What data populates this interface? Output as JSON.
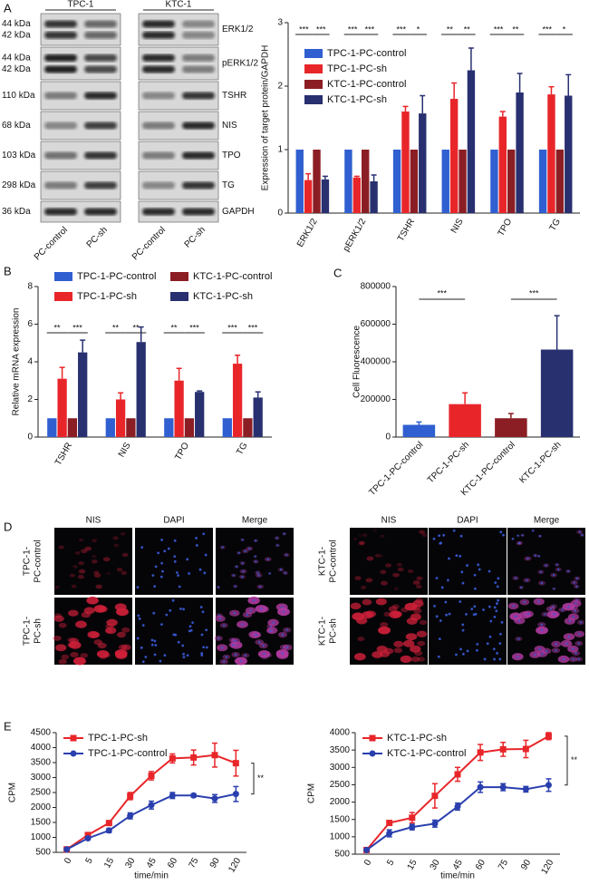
{
  "panels": [
    "A",
    "B",
    "C",
    "D",
    "E"
  ],
  "blot": {
    "groups": [
      {
        "name": "TPC-1",
        "lanes": [
          "PC-control",
          "PC-sh"
        ]
      },
      {
        "name": "KTC-1",
        "lanes": [
          "PC-control",
          "PC-sh"
        ]
      }
    ],
    "rows": [
      {
        "kda": [
          "44 kDa",
          "42 kDa"
        ],
        "name": "ERK1/2"
      },
      {
        "kda": [
          "44 kDa",
          "42 kDa"
        ],
        "name": "pERK1/2"
      },
      {
        "kda": [
          "110 kDa"
        ],
        "name": "TSHR"
      },
      {
        "kda": [
          "68 kDa"
        ],
        "name": "NIS"
      },
      {
        "kda": [
          "103 kDa"
        ],
        "name": "TPO"
      },
      {
        "kda": [
          "298 kDa"
        ],
        "name": "TG"
      },
      {
        "kda": [
          "36 kDa"
        ],
        "name": "GAPDH"
      }
    ]
  },
  "microscopy": [
    {
      "channels": [
        "NIS",
        "DAPI",
        "Merge"
      ],
      "rows": [
        [
          "TPC-1-",
          "PC-control"
        ],
        [
          "TPC-1-",
          "PC-sh"
        ]
      ]
    },
    {
      "channels": [
        "NIS",
        "DAPI",
        "Merge"
      ],
      "rows": [
        [
          "KTC-1-",
          "PC-control"
        ],
        [
          "KTC-1-",
          "PC-sh"
        ]
      ]
    }
  ],
  "chart_data": [
    {
      "type": "grouped_bar",
      "y_label": "Expression of target  protein/GAPDH",
      "categories": [
        "ERK1/2",
        "pERK1/2",
        "TSHR",
        "NIS",
        "TPO",
        "TG"
      ],
      "ylim": [
        0,
        3
      ],
      "yticks": [
        0,
        1,
        2,
        3
      ],
      "legend": "upper left",
      "series": [
        {
          "name": "TPC-1-PC-control",
          "color": "#2f5fd0",
          "values": [
            1,
            1,
            1,
            1,
            1,
            1
          ],
          "errors": [
            0,
            0,
            0,
            0,
            0,
            0
          ]
        },
        {
          "name": "TPC-1-PC-sh",
          "color": "#e8262a",
          "values": [
            0.52,
            0.56,
            1.6,
            1.8,
            1.52,
            1.87
          ],
          "errors": [
            0.1,
            0.02,
            0.08,
            0.25,
            0.08,
            0.12
          ]
        },
        {
          "name": "KTC-1-PC-control",
          "color": "#8b1e24",
          "values": [
            1,
            1,
            1,
            1,
            1,
            1
          ],
          "errors": [
            0,
            0,
            0,
            0,
            0,
            0
          ]
        },
        {
          "name": "KTC-1-PC-sh",
          "color": "#283070",
          "values": [
            0.53,
            0.5,
            1.57,
            2.25,
            1.9,
            1.85
          ],
          "errors": [
            0.05,
            0.1,
            0.28,
            0.35,
            0.3,
            0.33
          ]
        }
      ],
      "annotations": [
        [
          "***",
          "***"
        ],
        [
          "***",
          "***"
        ],
        [
          "***",
          "*"
        ],
        [
          "**",
          "**"
        ],
        [
          "***",
          "**"
        ],
        [
          "***",
          "*"
        ]
      ]
    },
    {
      "type": "grouped_bar",
      "y_label": "Relative mRNA expression",
      "categories": [
        "TSHR",
        "NIS",
        "TPO",
        "TG"
      ],
      "ylim": [
        0,
        8
      ],
      "yticks": [
        0,
        2,
        4,
        6,
        8
      ],
      "legend": "top",
      "series": [
        {
          "name": "TPC-1-PC-control",
          "color": "#2f5fd0",
          "values": [
            1,
            1,
            1,
            1
          ],
          "errors": [
            0,
            0,
            0,
            0
          ]
        },
        {
          "name": "TPC-1-PC-sh",
          "color": "#e8262a",
          "values": [
            3.1,
            2.0,
            3.0,
            3.9
          ],
          "errors": [
            0.6,
            0.35,
            0.65,
            0.45
          ]
        },
        {
          "name": "KTC-1-PC-control",
          "color": "#8b1e24",
          "values": [
            1,
            1,
            1,
            1
          ],
          "errors": [
            0,
            0,
            0,
            0
          ]
        },
        {
          "name": "KTC-1-PC-sh",
          "color": "#283070",
          "values": [
            4.5,
            5.05,
            2.4,
            2.1
          ],
          "errors": [
            0.65,
            0.8,
            0.05,
            0.3
          ]
        }
      ],
      "annotations": [
        [
          "**",
          "***"
        ],
        [
          "**",
          "**"
        ],
        [
          "**",
          "***"
        ],
        [
          "***",
          "***"
        ]
      ]
    },
    {
      "type": "bar",
      "y_label": "Cell Fluorescence",
      "categories": [
        "TPC-1-PC-control",
        "TPC-1-PC-sh",
        "KTC-1-PC-control",
        "KTC-1-PC-sh"
      ],
      "values": [
        65000,
        175000,
        100000,
        465000
      ],
      "errors": [
        15000,
        60000,
        25000,
        180000
      ],
      "colors": [
        "#2f5fd0",
        "#e8262a",
        "#8b1e24",
        "#283070"
      ],
      "ylim": [
        0,
        800000
      ],
      "yticks": [
        0,
        200000,
        400000,
        600000,
        800000
      ],
      "annotations": [
        "***",
        "***"
      ]
    },
    {
      "type": "line",
      "x_label": "time/min",
      "y_label": "CPM",
      "categories": [
        "0",
        "5",
        "15",
        "30",
        "45",
        "60",
        "75",
        "90",
        "120"
      ],
      "ylim": [
        500,
        4500
      ],
      "yticks": [
        500,
        1000,
        1500,
        2000,
        2500,
        3000,
        3500,
        4000,
        4500
      ],
      "legend": "upper left",
      "series": [
        {
          "name": "TPC-1-PC-sh",
          "color": "#e8262a",
          "marker": "square",
          "values": [
            600,
            1080,
            1480,
            2380,
            3060,
            3640,
            3670,
            3750,
            3480
          ],
          "errors": [
            30,
            50,
            60,
            120,
            140,
            150,
            250,
            400,
            430
          ]
        },
        {
          "name": "TPC-1-PC-control",
          "color": "#2a3fae",
          "marker": "circle",
          "values": [
            600,
            970,
            1230,
            1720,
            2080,
            2400,
            2400,
            2300,
            2450
          ],
          "errors": [
            30,
            50,
            70,
            100,
            130,
            100,
            60,
            130,
            250
          ]
        }
      ],
      "annotation": "**"
    },
    {
      "type": "line",
      "x_label": "time/min",
      "y_label": "CPM",
      "categories": [
        "0",
        "5",
        "15",
        "30",
        "45",
        "60",
        "75",
        "90",
        "120"
      ],
      "ylim": [
        500,
        4000
      ],
      "yticks": [
        500,
        1000,
        1500,
        2000,
        2500,
        3000,
        3500,
        4000
      ],
      "legend": "upper left",
      "series": [
        {
          "name": "KTC-1-PC-sh",
          "color": "#e8262a",
          "marker": "square",
          "values": [
            620,
            1400,
            1550,
            2180,
            2800,
            3430,
            3520,
            3530,
            3900
          ],
          "errors": [
            30,
            60,
            150,
            350,
            200,
            230,
            200,
            250,
            100
          ]
        },
        {
          "name": "KTC-1-PC-control",
          "color": "#2a3fae",
          "marker": "circle",
          "values": [
            620,
            1100,
            1280,
            1380,
            1870,
            2430,
            2430,
            2370,
            2490
          ],
          "errors": [
            30,
            100,
            80,
            100,
            100,
            150,
            100,
            80,
            180
          ]
        }
      ],
      "annotation": "**"
    }
  ]
}
